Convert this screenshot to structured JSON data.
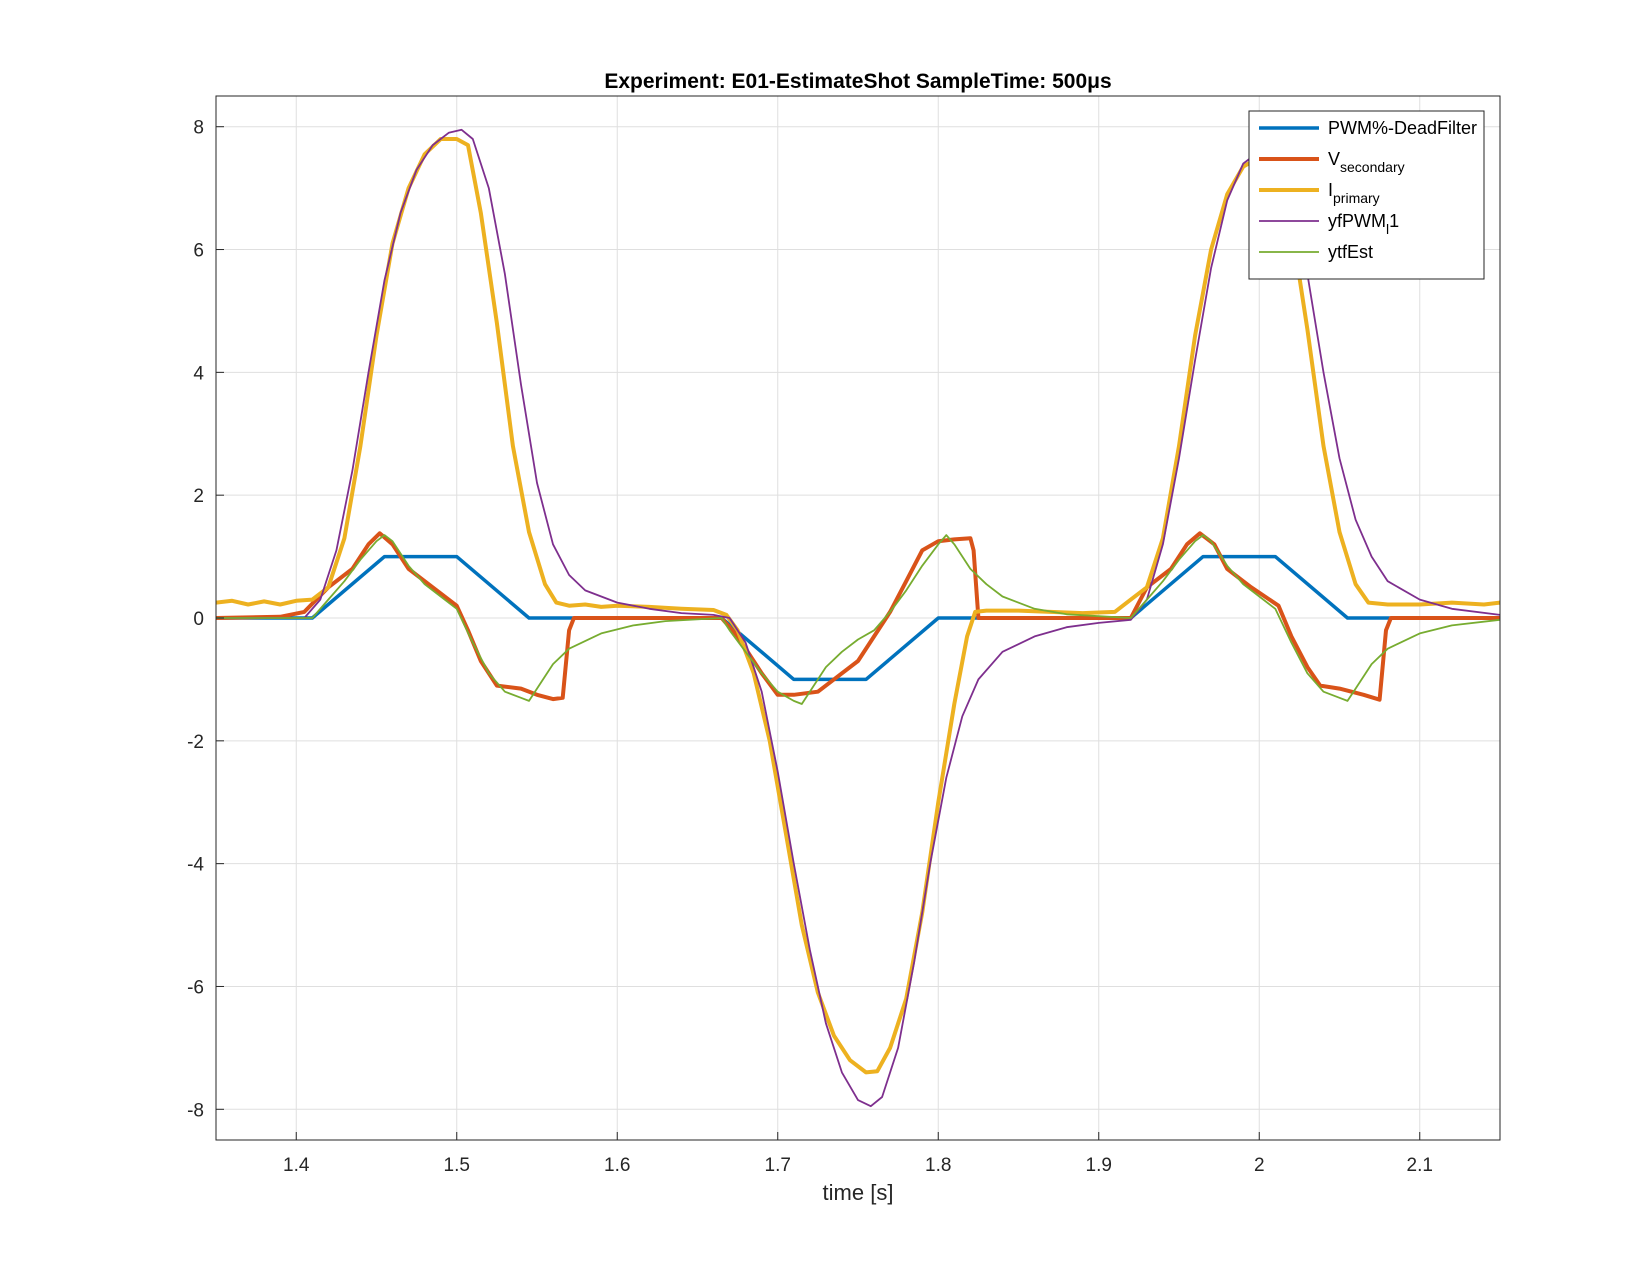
{
  "chart_data": {
    "type": "line",
    "title": "Experiment: E01-EstimateShot   SampleTime: 500μs",
    "xlabel": "time [s]",
    "ylabel": "",
    "xlim": [
      1.35,
      2.15
    ],
    "ylim": [
      -8.5,
      8.5
    ],
    "xticks": [
      1.4,
      1.5,
      1.6,
      1.7,
      1.8,
      1.9,
      2.0,
      2.1
    ],
    "xtick_labels": [
      "1.4",
      "1.5",
      "1.6",
      "1.7",
      "1.8",
      "1.9",
      "2",
      "2.1"
    ],
    "yticks": [
      8,
      6,
      4,
      2,
      0,
      -2,
      -4,
      -6,
      -8
    ],
    "ytick_labels": [
      "8",
      "6",
      "4",
      "2",
      "0",
      "-2",
      "-4",
      "-6",
      "-8"
    ],
    "grid": true,
    "legend_position": "top-right",
    "series": [
      {
        "name": "PWM%-DeadFilter",
        "color": "#0072BD",
        "width": 3.5,
        "points": [
          [
            1.35,
            0
          ],
          [
            1.41,
            0
          ],
          [
            1.455,
            1.0
          ],
          [
            1.5,
            1.0
          ],
          [
            1.545,
            0
          ],
          [
            1.665,
            0
          ],
          [
            1.71,
            -1.0
          ],
          [
            1.755,
            -1.0
          ],
          [
            1.8,
            0
          ],
          [
            1.92,
            0
          ],
          [
            1.965,
            1.0
          ],
          [
            2.01,
            1.0
          ],
          [
            2.055,
            0
          ],
          [
            2.15,
            0
          ]
        ]
      },
      {
        "name": "V",
        "sub": "secondary",
        "color": "#D95319",
        "width": 4,
        "points": [
          [
            1.35,
            0
          ],
          [
            1.39,
            0.02
          ],
          [
            1.405,
            0.1
          ],
          [
            1.42,
            0.5
          ],
          [
            1.435,
            0.8
          ],
          [
            1.445,
            1.2
          ],
          [
            1.452,
            1.38
          ],
          [
            1.46,
            1.2
          ],
          [
            1.47,
            0.8
          ],
          [
            1.485,
            0.5
          ],
          [
            1.5,
            0.2
          ],
          [
            1.507,
            -0.2
          ],
          [
            1.515,
            -0.7
          ],
          [
            1.525,
            -1.1
          ],
          [
            1.54,
            -1.15
          ],
          [
            1.55,
            -1.25
          ],
          [
            1.56,
            -1.32
          ],
          [
            1.566,
            -1.3
          ],
          [
            1.57,
            -0.2
          ],
          [
            1.573,
            0
          ],
          [
            1.665,
            0
          ],
          [
            1.675,
            -0.3
          ],
          [
            1.69,
            -0.9
          ],
          [
            1.7,
            -1.25
          ],
          [
            1.71,
            -1.25
          ],
          [
            1.725,
            -1.2
          ],
          [
            1.735,
            -1.0
          ],
          [
            1.75,
            -0.7
          ],
          [
            1.76,
            -0.3
          ],
          [
            1.77,
            0.1
          ],
          [
            1.78,
            0.6
          ],
          [
            1.79,
            1.1
          ],
          [
            1.8,
            1.25
          ],
          [
            1.81,
            1.28
          ],
          [
            1.82,
            1.3
          ],
          [
            1.822,
            1.1
          ],
          [
            1.825,
            0
          ],
          [
            1.92,
            0
          ],
          [
            1.93,
            0.5
          ],
          [
            1.945,
            0.8
          ],
          [
            1.955,
            1.2
          ],
          [
            1.963,
            1.38
          ],
          [
            1.972,
            1.2
          ],
          [
            1.98,
            0.8
          ],
          [
            1.995,
            0.5
          ],
          [
            2.012,
            0.2
          ],
          [
            2.02,
            -0.3
          ],
          [
            2.03,
            -0.8
          ],
          [
            2.038,
            -1.1
          ],
          [
            2.05,
            -1.15
          ],
          [
            2.065,
            -1.25
          ],
          [
            2.075,
            -1.33
          ],
          [
            2.079,
            -0.2
          ],
          [
            2.082,
            0
          ],
          [
            2.15,
            0
          ]
        ]
      },
      {
        "name": "I",
        "sub": "primary",
        "color": "#EDB120",
        "width": 4,
        "points": [
          [
            1.35,
            0.25
          ],
          [
            1.36,
            0.28
          ],
          [
            1.37,
            0.22
          ],
          [
            1.38,
            0.27
          ],
          [
            1.39,
            0.22
          ],
          [
            1.4,
            0.28
          ],
          [
            1.41,
            0.3
          ],
          [
            1.42,
            0.5
          ],
          [
            1.43,
            1.3
          ],
          [
            1.44,
            2.8
          ],
          [
            1.45,
            4.6
          ],
          [
            1.46,
            6.1
          ],
          [
            1.47,
            7.0
          ],
          [
            1.48,
            7.55
          ],
          [
            1.49,
            7.8
          ],
          [
            1.5,
            7.8
          ],
          [
            1.507,
            7.7
          ],
          [
            1.515,
            6.6
          ],
          [
            1.525,
            4.8
          ],
          [
            1.535,
            2.8
          ],
          [
            1.545,
            1.4
          ],
          [
            1.555,
            0.55
          ],
          [
            1.562,
            0.25
          ],
          [
            1.57,
            0.2
          ],
          [
            1.58,
            0.22
          ],
          [
            1.59,
            0.18
          ],
          [
            1.6,
            0.2
          ],
          [
            1.62,
            0.18
          ],
          [
            1.64,
            0.15
          ],
          [
            1.66,
            0.13
          ],
          [
            1.668,
            0.05
          ],
          [
            1.675,
            -0.2
          ],
          [
            1.685,
            -0.9
          ],
          [
            1.695,
            -2.0
          ],
          [
            1.705,
            -3.5
          ],
          [
            1.715,
            -5.0
          ],
          [
            1.725,
            -6.1
          ],
          [
            1.735,
            -6.8
          ],
          [
            1.745,
            -7.2
          ],
          [
            1.755,
            -7.4
          ],
          [
            1.762,
            -7.38
          ],
          [
            1.77,
            -7.0
          ],
          [
            1.78,
            -6.2
          ],
          [
            1.79,
            -4.8
          ],
          [
            1.8,
            -3.0
          ],
          [
            1.81,
            -1.4
          ],
          [
            1.818,
            -0.3
          ],
          [
            1.823,
            0.1
          ],
          [
            1.83,
            0.12
          ],
          [
            1.85,
            0.12
          ],
          [
            1.87,
            0.1
          ],
          [
            1.89,
            0.08
          ],
          [
            1.91,
            0.1
          ],
          [
            1.92,
            0.3
          ],
          [
            1.93,
            0.5
          ],
          [
            1.94,
            1.3
          ],
          [
            1.95,
            2.8
          ],
          [
            1.96,
            4.6
          ],
          [
            1.97,
            6.0
          ],
          [
            1.98,
            6.9
          ],
          [
            1.99,
            7.35
          ],
          [
            2.0,
            7.5
          ],
          [
            2.01,
            7.3
          ],
          [
            2.02,
            6.4
          ],
          [
            2.03,
            4.7
          ],
          [
            2.04,
            2.8
          ],
          [
            2.05,
            1.4
          ],
          [
            2.06,
            0.55
          ],
          [
            2.068,
            0.25
          ],
          [
            2.08,
            0.22
          ],
          [
            2.1,
            0.22
          ],
          [
            2.12,
            0.25
          ],
          [
            2.14,
            0.22
          ],
          [
            2.15,
            0.25
          ]
        ]
      },
      {
        "name": "yfPWM",
        "sub": "l",
        "tail": "1",
        "color": "#7E2F8E",
        "width": 1.8,
        "points": [
          [
            1.35,
            0
          ],
          [
            1.405,
            0
          ],
          [
            1.415,
            0.3
          ],
          [
            1.425,
            1.1
          ],
          [
            1.435,
            2.4
          ],
          [
            1.445,
            4.0
          ],
          [
            1.455,
            5.5
          ],
          [
            1.465,
            6.6
          ],
          [
            1.475,
            7.3
          ],
          [
            1.485,
            7.7
          ],
          [
            1.495,
            7.9
          ],
          [
            1.503,
            7.95
          ],
          [
            1.51,
            7.8
          ],
          [
            1.52,
            7.0
          ],
          [
            1.53,
            5.6
          ],
          [
            1.54,
            3.8
          ],
          [
            1.55,
            2.2
          ],
          [
            1.56,
            1.2
          ],
          [
            1.57,
            0.7
          ],
          [
            1.58,
            0.45
          ],
          [
            1.6,
            0.25
          ],
          [
            1.62,
            0.15
          ],
          [
            1.64,
            0.08
          ],
          [
            1.66,
            0.05
          ],
          [
            1.67,
            0
          ],
          [
            1.68,
            -0.4
          ],
          [
            1.69,
            -1.2
          ],
          [
            1.7,
            -2.5
          ],
          [
            1.71,
            -4.0
          ],
          [
            1.72,
            -5.4
          ],
          [
            1.73,
            -6.6
          ],
          [
            1.74,
            -7.4
          ],
          [
            1.75,
            -7.85
          ],
          [
            1.758,
            -7.95
          ],
          [
            1.765,
            -7.8
          ],
          [
            1.775,
            -7.0
          ],
          [
            1.785,
            -5.6
          ],
          [
            1.795,
            -4.0
          ],
          [
            1.805,
            -2.6
          ],
          [
            1.815,
            -1.6
          ],
          [
            1.825,
            -1.0
          ],
          [
            1.84,
            -0.55
          ],
          [
            1.86,
            -0.3
          ],
          [
            1.88,
            -0.15
          ],
          [
            1.9,
            -0.08
          ],
          [
            1.92,
            -0.03
          ],
          [
            1.93,
            0.3
          ],
          [
            1.94,
            1.2
          ],
          [
            1.95,
            2.6
          ],
          [
            1.96,
            4.2
          ],
          [
            1.97,
            5.7
          ],
          [
            1.98,
            6.8
          ],
          [
            1.99,
            7.4
          ],
          [
            2.0,
            7.6
          ],
          [
            2.01,
            7.5
          ],
          [
            2.02,
            6.9
          ],
          [
            2.03,
            5.6
          ],
          [
            2.04,
            4.0
          ],
          [
            2.05,
            2.6
          ],
          [
            2.06,
            1.6
          ],
          [
            2.07,
            1.0
          ],
          [
            2.08,
            0.6
          ],
          [
            2.1,
            0.3
          ],
          [
            2.12,
            0.15
          ],
          [
            2.15,
            0.05
          ]
        ]
      },
      {
        "name": "ytfEst",
        "color": "#77AC30",
        "width": 1.8,
        "points": [
          [
            1.35,
            0
          ],
          [
            1.41,
            0
          ],
          [
            1.42,
            0.3
          ],
          [
            1.43,
            0.6
          ],
          [
            1.44,
            0.95
          ],
          [
            1.45,
            1.25
          ],
          [
            1.455,
            1.35
          ],
          [
            1.46,
            1.25
          ],
          [
            1.47,
            0.85
          ],
          [
            1.48,
            0.55
          ],
          [
            1.49,
            0.35
          ],
          [
            1.5,
            0.15
          ],
          [
            1.51,
            -0.4
          ],
          [
            1.52,
            -0.9
          ],
          [
            1.53,
            -1.2
          ],
          [
            1.54,
            -1.3
          ],
          [
            1.545,
            -1.35
          ],
          [
            1.55,
            -1.15
          ],
          [
            1.56,
            -0.75
          ],
          [
            1.57,
            -0.5
          ],
          [
            1.59,
            -0.25
          ],
          [
            1.61,
            -0.12
          ],
          [
            1.63,
            -0.05
          ],
          [
            1.665,
            0
          ],
          [
            1.67,
            -0.2
          ],
          [
            1.68,
            -0.55
          ],
          [
            1.69,
            -0.9
          ],
          [
            1.7,
            -1.2
          ],
          [
            1.71,
            -1.35
          ],
          [
            1.715,
            -1.4
          ],
          [
            1.72,
            -1.2
          ],
          [
            1.73,
            -0.8
          ],
          [
            1.74,
            -0.55
          ],
          [
            1.75,
            -0.35
          ],
          [
            1.76,
            -0.2
          ],
          [
            1.77,
            0.1
          ],
          [
            1.78,
            0.45
          ],
          [
            1.79,
            0.85
          ],
          [
            1.8,
            1.2
          ],
          [
            1.805,
            1.35
          ],
          [
            1.81,
            1.2
          ],
          [
            1.82,
            0.8
          ],
          [
            1.83,
            0.55
          ],
          [
            1.84,
            0.35
          ],
          [
            1.86,
            0.15
          ],
          [
            1.88,
            0.06
          ],
          [
            1.92,
            0
          ],
          [
            1.93,
            0.3
          ],
          [
            1.94,
            0.6
          ],
          [
            1.95,
            0.95
          ],
          [
            1.96,
            1.25
          ],
          [
            1.965,
            1.35
          ],
          [
            1.97,
            1.25
          ],
          [
            1.98,
            0.85
          ],
          [
            1.99,
            0.55
          ],
          [
            2.0,
            0.35
          ],
          [
            2.01,
            0.15
          ],
          [
            2.02,
            -0.4
          ],
          [
            2.03,
            -0.9
          ],
          [
            2.04,
            -1.2
          ],
          [
            2.05,
            -1.3
          ],
          [
            2.055,
            -1.35
          ],
          [
            2.06,
            -1.15
          ],
          [
            2.07,
            -0.75
          ],
          [
            2.08,
            -0.5
          ],
          [
            2.1,
            -0.25
          ],
          [
            2.12,
            -0.12
          ],
          [
            2.15,
            -0.03
          ]
        ]
      }
    ]
  }
}
